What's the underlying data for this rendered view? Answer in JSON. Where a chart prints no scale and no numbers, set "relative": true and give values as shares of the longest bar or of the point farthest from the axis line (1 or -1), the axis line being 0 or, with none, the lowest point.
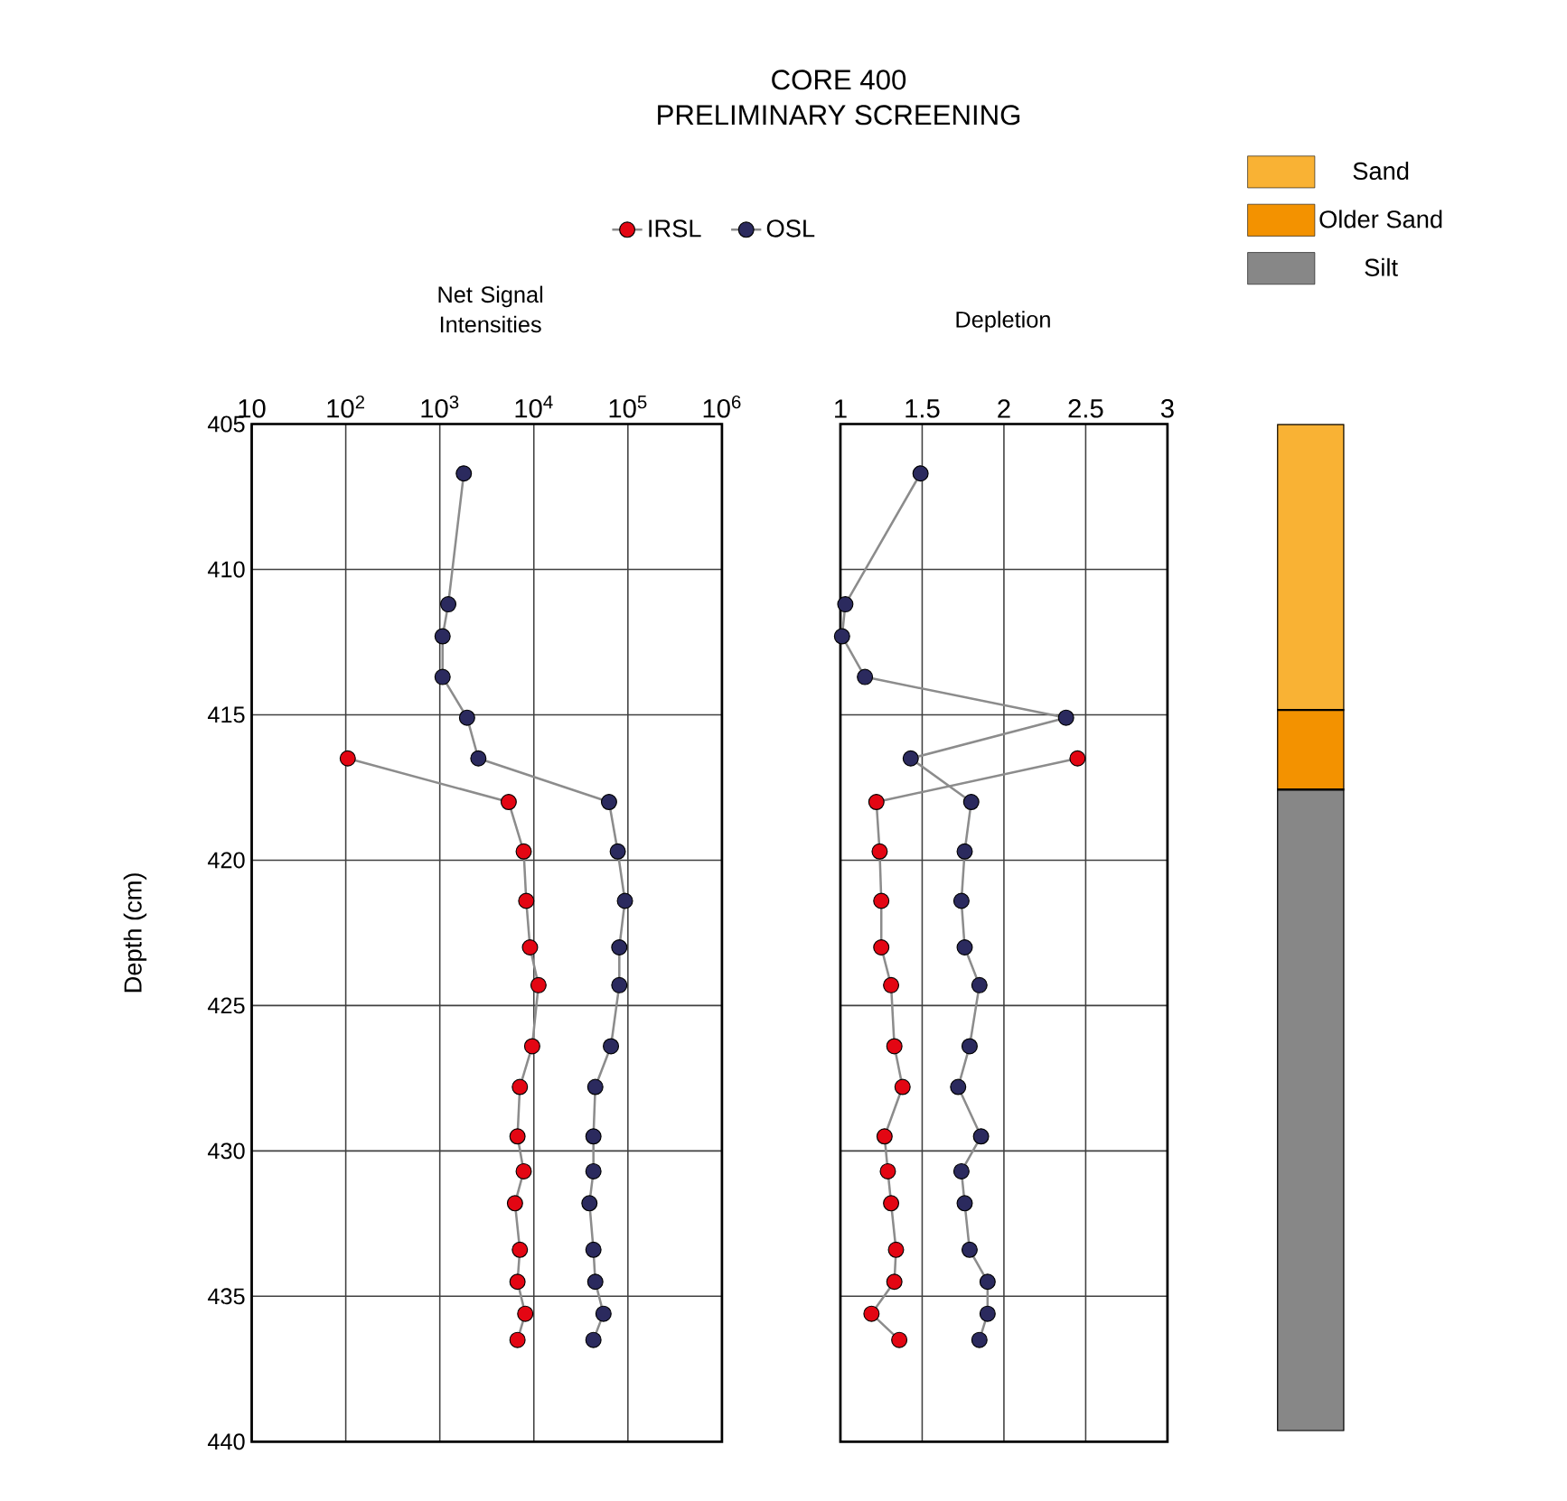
{
  "chart_data": [
    {
      "type": "line",
      "xlabel": "Net Signal Intensities",
      "ylabel": "Depth (cm)",
      "log": "x",
      "xlim": [
        10,
        1000000
      ],
      "xticks": [
        10,
        {
          "value": 100,
          "label": "10$^{2}$"
        },
        {
          "value": 1000,
          "label": "10$^{3}$"
        },
        {
          "value": 10000,
          "label": "10$^{4}$"
        },
        {
          "value": 100000,
          "label": "10$^{5}$"
        },
        {
          "value": 1000000,
          "label": "10$^{6}$"
        }
      ],
      "ylim": [
        440,
        405
      ],
      "yticks": [
        405,
        410,
        415,
        420,
        425,
        430,
        435,
        440
      ],
      "grid": true,
      "legend": "top",
      "marker": "circle",
      "series": [
        {
          "name": "IRSL",
          "color": "#e30613",
          "x": [
            105,
            5400,
            7800,
            8300,
            9100,
            11200,
            9600,
            7100,
            6700,
            7800,
            6300,
            7100,
            6700,
            8100,
            6700
          ],
          "values": [
            416.5,
            418.0,
            419.7,
            421.4,
            423.0,
            424.3,
            426.4,
            427.8,
            429.5,
            430.7,
            431.8,
            433.4,
            434.5,
            435.6,
            436.5
          ]
        },
        {
          "name": "OSL",
          "color": "#2b2a5e",
          "x": [
            1800,
            1230,
            1070,
            1070,
            1950,
            2570,
            63000,
            78000,
            93000,
            81000,
            81000,
            66000,
            45000,
            43000,
            43000,
            39000,
            43000,
            45000,
            55000,
            43000
          ],
          "values": [
            406.7,
            411.2,
            412.3,
            413.7,
            415.1,
            416.5,
            418.0,
            419.7,
            421.4,
            423.0,
            424.3,
            426.4,
            427.8,
            429.5,
            430.7,
            431.8,
            433.4,
            434.5,
            435.6,
            436.5
          ]
        }
      ]
    },
    {
      "type": "line",
      "title": "CORE 400",
      "subtitle": "PRELIMINARY SCREENING",
      "xlabel": "Depletion",
      "xlim": [
        1,
        3
      ],
      "xticks": [
        1,
        1.5,
        2,
        2.5,
        3
      ],
      "ylim": [
        440,
        405
      ],
      "yticks": [
        405,
        410,
        415,
        420,
        425,
        430,
        435,
        440
      ],
      "tick_labels": "x",
      "grid": true,
      "marker": "circle",
      "series": [
        {
          "color": "#e30613",
          "x": [
            2.45,
            1.22,
            1.24,
            1.25,
            1.25,
            1.31,
            1.33,
            1.38,
            1.27,
            1.29,
            1.31,
            1.34,
            1.33,
            1.19,
            1.36
          ],
          "values": [
            416.5,
            418.0,
            419.7,
            421.4,
            423.0,
            424.3,
            426.4,
            427.8,
            429.5,
            430.7,
            431.8,
            433.4,
            434.5,
            435.6,
            436.5
          ]
        },
        {
          "color": "#2b2a5e",
          "x": [
            1.49,
            1.03,
            1.01,
            1.15,
            2.38,
            1.43,
            1.8,
            1.76,
            1.74,
            1.76,
            1.85,
            1.79,
            1.72,
            1.86,
            1.74,
            1.76,
            1.79,
            1.9,
            1.9,
            1.85
          ],
          "values": [
            406.7,
            411.2,
            412.3,
            413.7,
            415.1,
            416.5,
            418.0,
            419.7,
            421.4,
            423.0,
            424.3,
            426.4,
            427.8,
            429.5,
            430.7,
            431.8,
            433.4,
            434.5,
            435.6,
            436.5
          ]
        }
      ]
    },
    {
      "type": "bar",
      "relative": true,
      "stacked": true,
      "categories": [
        null
      ],
      "legend": "top",
      "series": [
        {
          "name": "Silt",
          "color": "#878787",
          "values": [
            0.637
          ]
        },
        {
          "name": "Older Sand",
          "color": "#f39200",
          "values": [
            0.079
          ]
        },
        {
          "name": "Sand",
          "color": "#f9b234",
          "values": [
            0.284
          ]
        }
      ]
    }
  ]
}
